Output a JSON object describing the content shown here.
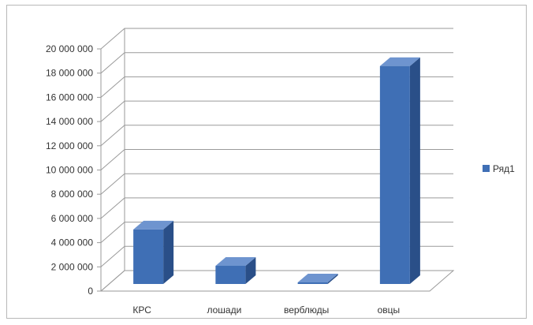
{
  "chart_data": {
    "type": "bar",
    "three_d": true,
    "categories": [
      "КРС",
      "лошади",
      "верблюды",
      "овцы"
    ],
    "series": [
      {
        "name": "Ряд1",
        "values": [
          4500000,
          1500000,
          100000,
          18000000
        ]
      }
    ],
    "ylim": [
      0,
      20000000
    ],
    "y_tick_step": 2000000,
    "y_tick_labels": [
      "0",
      "2 000 000",
      "4 000 000",
      "6 000 000",
      "8 000 000",
      "10 000 000",
      "12 000 000",
      "14 000 000",
      "16 000 000",
      "18 000 000",
      "20 000 000"
    ],
    "grid": true,
    "legend": {
      "position": "right",
      "entries": [
        "Ряд1"
      ]
    },
    "colors": {
      "bar_front": "#3f6fb5",
      "bar_side": "#2a4f88",
      "bar_top": "#6e94cf",
      "grid": "#9a9a9a",
      "wall": "#ffffff"
    }
  }
}
